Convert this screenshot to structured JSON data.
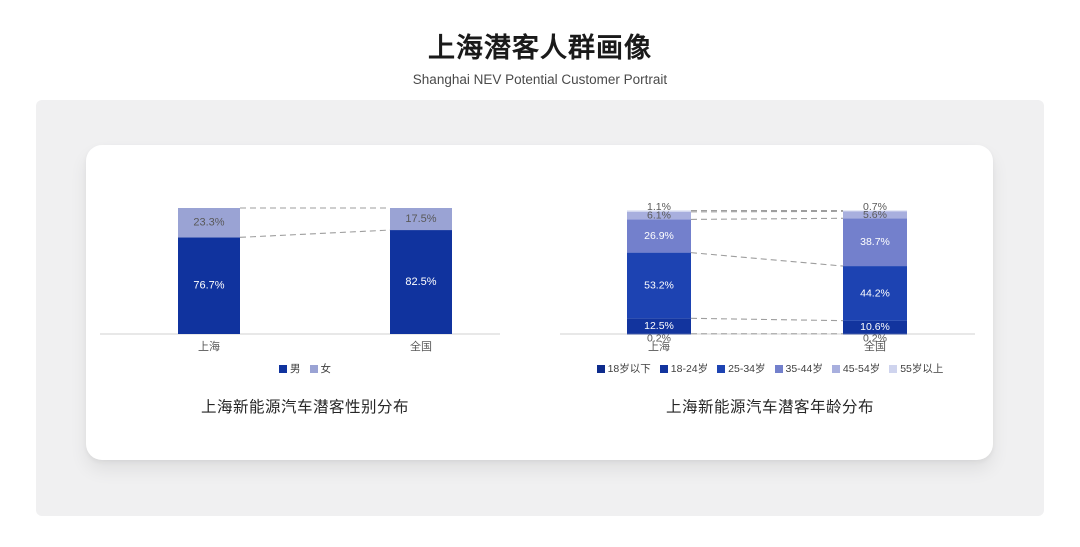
{
  "header": {
    "title": "上海潜客人群画像",
    "subtitle": "Shanghai NEV Potential Customer Portrait"
  },
  "colors": {
    "page_bg": "#ffffff",
    "panel_bg": "#f0f0f1",
    "card_bg": "#ffffff",
    "axis_line": "#d9d9d9",
    "connector_line": "#9e9e9e",
    "dark_label_text": "#595959"
  },
  "chart_data": [
    {
      "type": "stacked-bar",
      "title": "上海新能源汽车潜客性别分布",
      "categories": [
        "上海",
        "全国"
      ],
      "series": [
        {
          "name": "男",
          "color": "#10339E",
          "label_color": "#ffffff",
          "values": [
            76.7,
            82.5
          ]
        },
        {
          "name": "女",
          "color": "#9AA3D4",
          "label_color": "#595959",
          "values": [
            23.3,
            17.5
          ]
        }
      ],
      "unit": "%",
      "ylim": [
        0,
        100
      ],
      "grid": false,
      "legend_position": "bottom",
      "connectors": "dashed"
    },
    {
      "type": "stacked-bar",
      "title": "上海新能源汽车潜客年龄分布",
      "categories": [
        "上海",
        "全国"
      ],
      "series": [
        {
          "name": "18岁以下",
          "color": "#0D2B8C",
          "label_color": "#595959",
          "values": [
            0.2,
            0.2
          ]
        },
        {
          "name": "18-24岁",
          "color": "#12349E",
          "label_color": "#ffffff",
          "values": [
            12.5,
            10.6
          ]
        },
        {
          "name": "25-34岁",
          "color": "#1D43B2",
          "label_color": "#ffffff",
          "values": [
            53.2,
            44.2
          ]
        },
        {
          "name": "35-44岁",
          "color": "#7380CC",
          "label_color": "#ffffff",
          "values": [
            26.9,
            38.7
          ]
        },
        {
          "name": "45-54岁",
          "color": "#A8AFDE",
          "label_color": "#595959",
          "values": [
            6.1,
            5.6
          ]
        },
        {
          "name": "55岁以上",
          "color": "#CFD4EE",
          "label_color": "#595959",
          "values": [
            1.1,
            0.7
          ]
        }
      ],
      "unit": "%",
      "ylim": [
        0,
        100
      ],
      "grid": false,
      "legend_position": "bottom",
      "connectors": "dashed"
    }
  ]
}
